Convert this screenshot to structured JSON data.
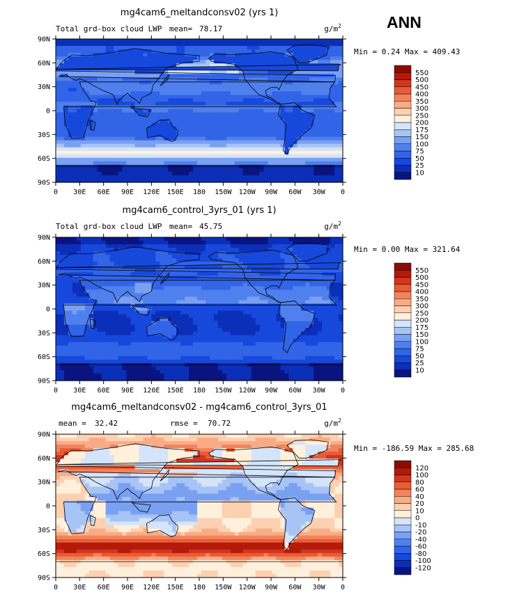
{
  "season": "ANN",
  "chart_data": [
    {
      "type": "heatmap",
      "title": "mg4cam6_meltandconsv02 (yrs 1)",
      "variable": "Total grd-box cloud LWP",
      "units": "g/m",
      "units_sup": "2",
      "mean_label": "mean=",
      "mean": "78.17",
      "min_label": "Min =",
      "min": "0.24",
      "max_label": "Max =",
      "max": "409.43",
      "colorbar_levels": [
        "10",
        "25",
        "50",
        "75",
        "100",
        "150",
        "175",
        "200",
        "250",
        "300",
        "350",
        "400",
        "450",
        "500",
        "550"
      ],
      "colorbar_colors": [
        "#0a1480",
        "#0b2fb8",
        "#1748dc",
        "#3264e8",
        "#4f80ee",
        "#7aa0f2",
        "#a8c4f6",
        "#d4e4fa",
        "#fff0dc",
        "#fcd0b0",
        "#f8ac86",
        "#f1845c",
        "#e85c36",
        "#d2361c",
        "#b41a0a",
        "#8c0c04"
      ],
      "field": "meltandconsv02",
      "x_ticks": [
        "0",
        "30E",
        "60E",
        "90E",
        "120E",
        "150E",
        "180",
        "150W",
        "120W",
        "90W",
        "60W",
        "30W",
        "0"
      ],
      "y_ticks": [
        "90N",
        "60N",
        "30N",
        "0",
        "30S",
        "60S",
        "90S"
      ]
    },
    {
      "type": "heatmap",
      "title": "mg4cam6_control_3yrs_01 (yrs 1)",
      "variable": "Total grd-box cloud LWP",
      "units": "g/m",
      "units_sup": "2",
      "mean_label": "mean=",
      "mean": "45.75",
      "min_label": "Min =",
      "min": "0.00",
      "max_label": "Max =",
      "max": "321.64",
      "colorbar_levels": [
        "10",
        "25",
        "50",
        "75",
        "100",
        "150",
        "175",
        "200",
        "250",
        "300",
        "350",
        "400",
        "450",
        "500",
        "550"
      ],
      "colorbar_colors": [
        "#0a1480",
        "#0b2fb8",
        "#1748dc",
        "#3264e8",
        "#4f80ee",
        "#7aa0f2",
        "#a8c4f6",
        "#d4e4fa",
        "#fff0dc",
        "#fcd0b0",
        "#f8ac86",
        "#f1845c",
        "#e85c36",
        "#d2361c",
        "#b41a0a",
        "#8c0c04"
      ],
      "field": "control",
      "x_ticks": [
        "0",
        "30E",
        "60E",
        "90E",
        "120E",
        "150E",
        "180",
        "150W",
        "120W",
        "90W",
        "60W",
        "30W",
        "0"
      ],
      "y_ticks": [
        "90N",
        "60N",
        "30N",
        "0",
        "30S",
        "60S",
        "90S"
      ]
    },
    {
      "type": "heatmap",
      "title": "mg4cam6_meltandconsv02 - mg4cam6_control_3yrs_01",
      "units": "g/m",
      "units_sup": "2",
      "mean_label": "mean =",
      "mean": "32.42",
      "rmse_label": "rmse =",
      "rmse": "70.72",
      "min_label": "Min =",
      "min": "-186.59",
      "max_label": "Max =",
      "max": "285.68",
      "colorbar_levels": [
        "-120",
        "-100",
        "-80",
        "-60",
        "-40",
        "-20",
        "-10",
        "0",
        "10",
        "20",
        "40",
        "60",
        "80",
        "100",
        "120"
      ],
      "colorbar_colors": [
        "#0a1480",
        "#0b2fb8",
        "#1748dc",
        "#3264e8",
        "#4f80ee",
        "#7aa0f2",
        "#a8c4f6",
        "#d4e4fa",
        "#fff0dc",
        "#fcd0b0",
        "#f8ac86",
        "#f1845c",
        "#e85c36",
        "#d2361c",
        "#b41a0a",
        "#8c0c04"
      ],
      "field": "difference",
      "x_ticks": [
        "0",
        "30E",
        "60E",
        "90E",
        "120E",
        "150E",
        "180",
        "150W",
        "120W",
        "90W",
        "60W",
        "30W",
        "0"
      ],
      "y_ticks": [
        "90N",
        "60N",
        "30N",
        "0",
        "30S",
        "60S",
        "90S"
      ]
    }
  ]
}
